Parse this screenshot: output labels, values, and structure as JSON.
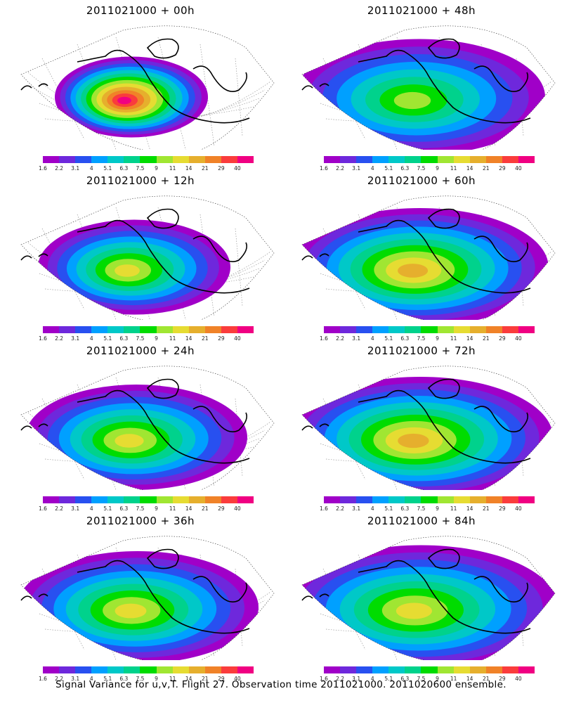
{
  "panels": [
    {
      "title": "2011021000 + 00h",
      "spread": 0.35,
      "peak_level": 12
    },
    {
      "title": "2011021000 + 12h",
      "spread": 0.55,
      "peak_level": 8
    },
    {
      "title": "2011021000 + 24h",
      "spread": 0.7,
      "peak_level": 8
    },
    {
      "title": "2011021000 + 36h",
      "spread": 0.8,
      "peak_level": 8
    },
    {
      "title": "2011021000 + 48h",
      "spread": 0.85,
      "peak_level": 7
    },
    {
      "title": "2011021000 + 60h",
      "spread": 0.88,
      "peak_level": 9
    },
    {
      "title": "2011021000 + 72h",
      "spread": 0.92,
      "peak_level": 9
    },
    {
      "title": "2011021000 + 84h",
      "spread": 0.97,
      "peak_level": 8
    }
  ],
  "colorbar": {
    "labels": [
      "1.6",
      "2.2",
      "3.1",
      "4",
      "5.1",
      "6.3",
      "7.5",
      "9",
      "11",
      "14",
      "21",
      "29",
      "40"
    ],
    "colors": [
      "#a000c8",
      "#6e28dc",
      "#2850f0",
      "#00a0ff",
      "#00c8c8",
      "#00d28c",
      "#00dc00",
      "#a0e632",
      "#e6dc32",
      "#e6af2d",
      "#f08228",
      "#fa3c3c",
      "#f00082"
    ]
  },
  "footer": "Signal Variance for u,v,T. Flight 27. Observation time 2011021000. 2011020600 ensemble."
}
